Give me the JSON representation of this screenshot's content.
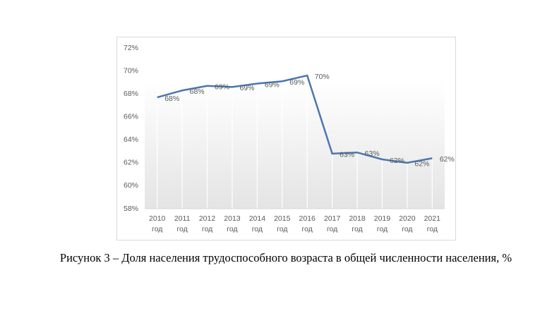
{
  "caption": "Рисунок 3 – Доля населения трудоспособного возраста в общей численности населения, %",
  "chart_data": {
    "type": "line",
    "categories": [
      "2010 год",
      "2011 год",
      "2012 год",
      "2013 год",
      "2014 год",
      "2015 год",
      "2016 год",
      "2017 год",
      "2018 год",
      "2019 год",
      "2020 год",
      "2021 год"
    ],
    "series": [
      {
        "name": "Доля",
        "color": "#4a76b0",
        "values": [
          67.7,
          68.3,
          68.7,
          68.6,
          68.9,
          69.1,
          69.6,
          62.8,
          62.9,
          62.3,
          62.0,
          62.4
        ],
        "value_labels": [
          "68%",
          "68%",
          "69%",
          "69%",
          "69%",
          "69%",
          "70%",
          "63%",
          "63%",
          "62%",
          "62%",
          "62%"
        ]
      }
    ],
    "ylim": [
      58,
      72
    ],
    "yticks": [
      {
        "value": 58,
        "label": "58%"
      },
      {
        "value": 60,
        "label": "60%"
      },
      {
        "value": 62,
        "label": "62%"
      },
      {
        "value": 64,
        "label": "64%"
      },
      {
        "value": 66,
        "label": "66%"
      },
      {
        "value": 68,
        "label": "68%"
      },
      {
        "value": 70,
        "label": "70%"
      },
      {
        "value": 72,
        "label": "72%"
      }
    ]
  }
}
